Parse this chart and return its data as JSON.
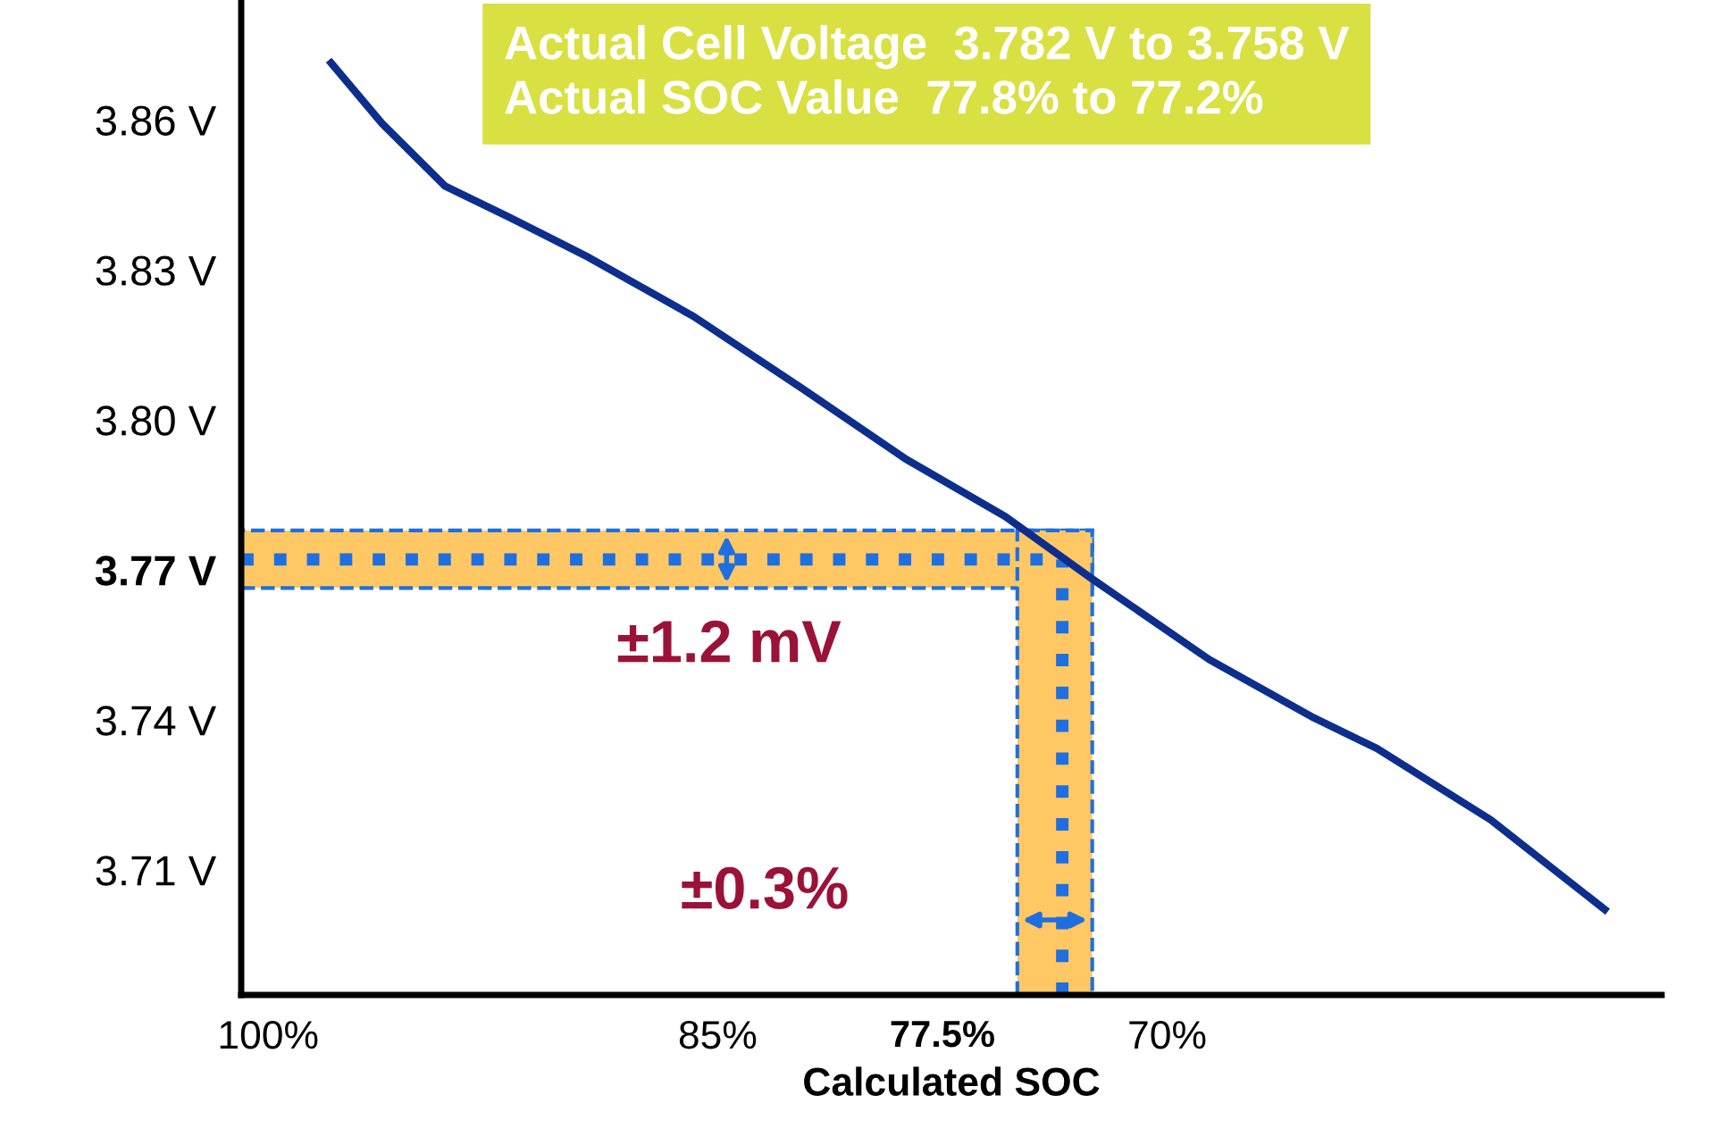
{
  "chart_data": {
    "type": "line",
    "xlabel": "Calculated SOC",
    "x": [
      97.9,
      96.2,
      94.1,
      92.0,
      89.3,
      85.8,
      82.2,
      78.7,
      75.4,
      72.5,
      68.6,
      65.1,
      63.0,
      59.2,
      55.4
    ],
    "series": [
      {
        "color": "#0d2e8c",
        "values": [
          3.8714,
          3.8593,
          3.8468,
          3.8407,
          3.8325,
          3.8207,
          3.8064,
          3.7921,
          3.7807,
          3.7682,
          3.7521,
          3.7404,
          3.7343,
          3.72,
          3.7021
        ]
      }
    ],
    "xlim": [
      100.9,
      53.5
    ],
    "ylim": [
      3.685,
      3.884
    ],
    "xticks": [
      {
        "value": 100,
        "label": "100%"
      },
      {
        "value": 85,
        "label": "85%"
      },
      {
        "value": 77.5,
        "label": "77.5%"
      },
      {
        "value": 70,
        "label": "70%"
      }
    ],
    "yticks": [
      {
        "value": 3.86,
        "label": "3.86 V"
      },
      {
        "value": 3.83,
        "label": "3.83 V"
      },
      {
        "value": 3.8,
        "label": "3.80 V"
      },
      {
        "value": 3.77,
        "label": "3.77 V"
      },
      {
        "value": 3.74,
        "label": "3.74 V"
      },
      {
        "value": 3.71,
        "label": "3.71 V"
      }
    ],
    "bands": [
      {
        "axis": "y",
        "from": 3.7664,
        "to": 3.7779,
        "color": "#ffc864"
      },
      {
        "axis": "x",
        "from": 75.0,
        "to": 72.5,
        "color": "#ffc864"
      }
    ],
    "ref_lines": [
      {
        "axis": "y",
        "value": 3.7721,
        "color": "#1f6fe0",
        "line_style": "dotted"
      },
      {
        "axis": "x",
        "value": 73.5,
        "color": "#1f6fe0",
        "line_style": "dotted"
      }
    ],
    "annotations": [
      "Actual Cell Voltage  3.782 V to 3.758 V",
      "Actual SOC Value  77.8% to 77.2%",
      "±1.2 mV",
      "±0.3%"
    ],
    "grid": false,
    "legend": false,
    "marker": "none",
    "line_style": "solid"
  }
}
